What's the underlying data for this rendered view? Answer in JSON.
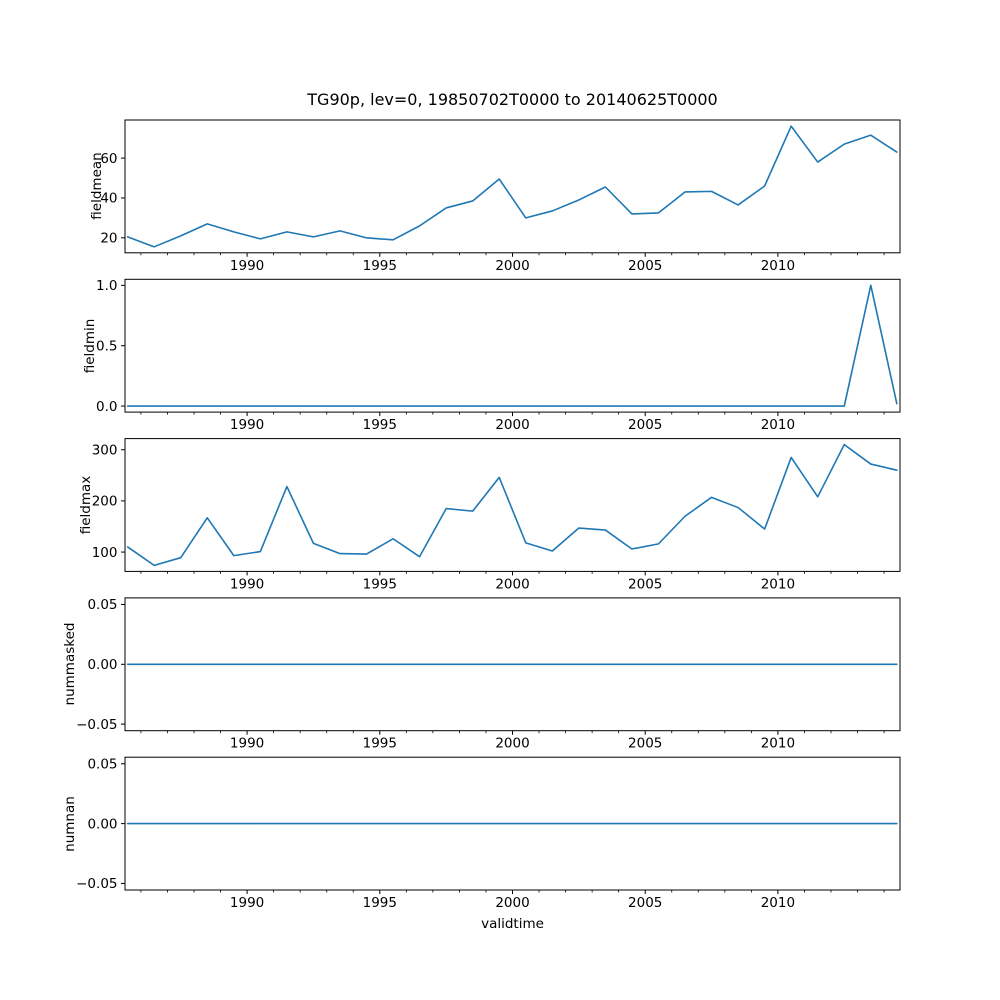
{
  "chart_data": {
    "type": "line",
    "title": "TG90p, lev=0, 19850702T0000 to 20140625T0000",
    "xlabel": "validtime",
    "line_color": "#1f77b4",
    "grid": false,
    "legend": null,
    "x": [
      1985.5,
      1986.5,
      1987.5,
      1988.5,
      1989.5,
      1990.5,
      1991.5,
      1992.5,
      1993.5,
      1994.5,
      1995.5,
      1996.5,
      1997.5,
      1998.5,
      1999.5,
      2000.5,
      2001.5,
      2002.5,
      2003.5,
      2004.5,
      2005.5,
      2006.5,
      2007.5,
      2008.5,
      2009.5,
      2010.5,
      2011.5,
      2012.5,
      2013.5,
      2014.48
    ],
    "xlim": [
      1985.4,
      2014.6
    ],
    "x_major_ticks": [
      1990,
      1995,
      2000,
      2005,
      2010
    ],
    "x_major_tick_labels": [
      "1990",
      "1995",
      "2000",
      "2005",
      "2010"
    ],
    "x_minor_tick_years": [
      1986,
      1987,
      1988,
      1989,
      1991,
      1992,
      1993,
      1994,
      1996,
      1997,
      1998,
      1999,
      2001,
      2002,
      2003,
      2004,
      2006,
      2007,
      2008,
      2009,
      2011,
      2012,
      2013,
      2014
    ],
    "panels": [
      {
        "name": "fieldmean",
        "ylabel": "fieldmean",
        "ylim": [
          12.5,
          79.1
        ],
        "yticks": [
          20,
          40,
          60
        ],
        "ytick_labels": [
          "20",
          "40",
          "60"
        ],
        "values": [
          20.5,
          15.5,
          21,
          27,
          23,
          19.5,
          23,
          20.5,
          23.5,
          20,
          19,
          26,
          35,
          38.5,
          49.5,
          30,
          33.5,
          39,
          45.5,
          32,
          32.5,
          43,
          43.3,
          36.5,
          46,
          76,
          58,
          67,
          71.5,
          63
        ]
      },
      {
        "name": "fieldmin",
        "ylabel": "fieldmin",
        "ylim": [
          -0.05,
          1.05
        ],
        "yticks": [
          0.0,
          0.5,
          1.0
        ],
        "ytick_labels": [
          "0.0",
          "0.5",
          "1.0"
        ],
        "values": [
          0,
          0,
          0,
          0,
          0,
          0,
          0,
          0,
          0,
          0,
          0,
          0,
          0,
          0,
          0,
          0,
          0,
          0,
          0,
          0,
          0,
          0,
          0,
          0,
          0,
          0,
          0,
          0,
          1.0,
          0.02
        ]
      },
      {
        "name": "fieldmax",
        "ylabel": "fieldmax",
        "ylim": [
          62.2,
          321.8
        ],
        "yticks": [
          100,
          200,
          300
        ],
        "ytick_labels": [
          "100",
          "200",
          "300"
        ],
        "values": [
          110,
          74,
          89,
          167,
          93,
          101,
          228,
          117,
          97,
          96,
          126,
          91,
          185,
          180,
          246,
          118,
          102,
          147,
          143,
          106,
          116,
          170,
          207,
          187,
          145,
          285,
          208,
          310,
          272,
          260
        ]
      },
      {
        "name": "nummasked",
        "ylabel": "nummasked",
        "ylim": [
          -0.0555,
          0.0555
        ],
        "yticks": [
          -0.05,
          0.0,
          0.05
        ],
        "ytick_labels": [
          "−0.05",
          "0.00",
          "0.05"
        ],
        "values": [
          0,
          0,
          0,
          0,
          0,
          0,
          0,
          0,
          0,
          0,
          0,
          0,
          0,
          0,
          0,
          0,
          0,
          0,
          0,
          0,
          0,
          0,
          0,
          0,
          0,
          0,
          0,
          0,
          0,
          0
        ]
      },
      {
        "name": "numnan",
        "ylabel": "numnan",
        "ylim": [
          -0.0555,
          0.0555
        ],
        "yticks": [
          -0.05,
          0.0,
          0.05
        ],
        "ytick_labels": [
          "−0.05",
          "0.00",
          "0.05"
        ],
        "values": [
          0,
          0,
          0,
          0,
          0,
          0,
          0,
          0,
          0,
          0,
          0,
          0,
          0,
          0,
          0,
          0,
          0,
          0,
          0,
          0,
          0,
          0,
          0,
          0,
          0,
          0,
          0,
          0,
          0,
          0
        ]
      }
    ]
  }
}
